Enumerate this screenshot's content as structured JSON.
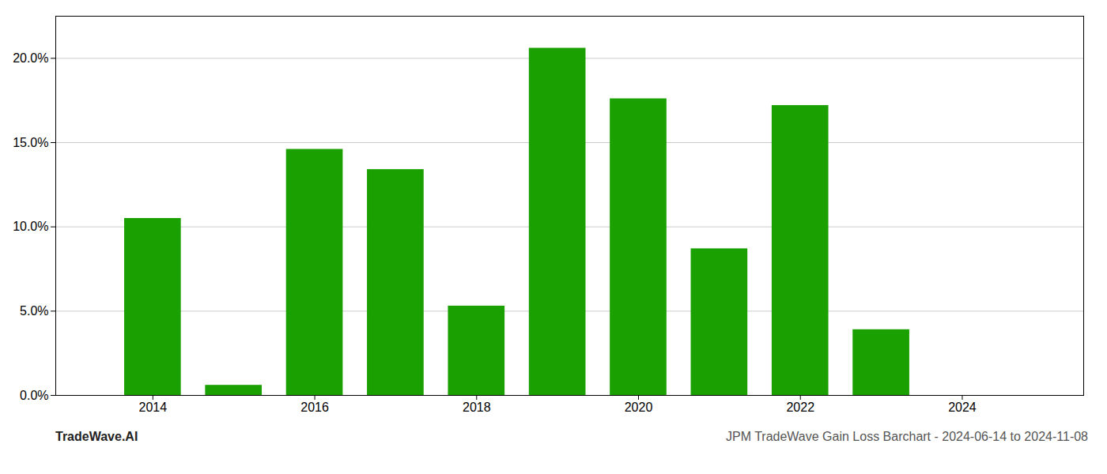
{
  "chart_data": {
    "type": "bar",
    "title": "JPM TradeWave Gain Loss Barchart - 2024-06-14 to 2024-11-08",
    "annotations": [
      "TradeWave.AI"
    ],
    "x": [
      2014,
      2015,
      2016,
      2017,
      2018,
      2019,
      2020,
      2021,
      2022,
      2023
    ],
    "values": [
      0.105,
      0.006,
      0.146,
      0.134,
      0.053,
      0.206,
      0.176,
      0.087,
      0.172,
      0.039
    ],
    "color": "#1aA000",
    "xlim": [
      2012.8,
      2025.5
    ],
    "xticks": [
      2014,
      2016,
      2018,
      2020,
      2022,
      2024
    ],
    "ylim": [
      0,
      0.225
    ],
    "yticks": [
      {
        "value": 0.0,
        "label": "0.0%"
      },
      {
        "value": 0.05,
        "label": "5.0%"
      },
      {
        "value": 0.1,
        "label": "10.0%"
      },
      {
        "value": 0.15,
        "label": "15.0%"
      },
      {
        "value": 0.2,
        "label": "20.0%"
      }
    ],
    "grid": true
  }
}
